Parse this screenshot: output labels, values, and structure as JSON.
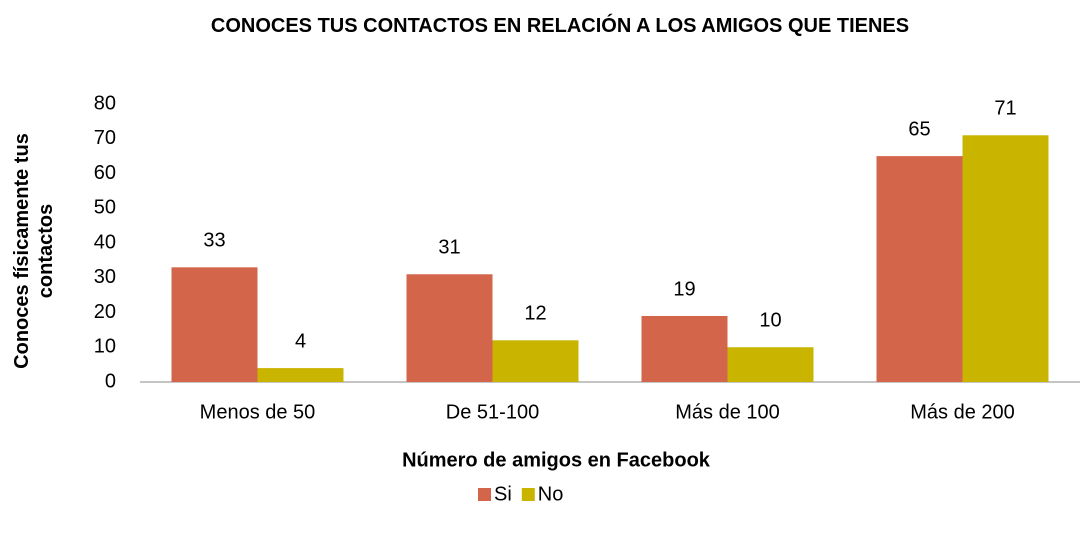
{
  "chart_data": {
    "type": "bar",
    "title": "CONOCES TUS CONTACTOS EN RELACIÓN A LOS AMIGOS QUE TIENES",
    "x_label": "Número de amigos en Facebook",
    "y_label": "Conoces físicamente tus contactos",
    "categories": [
      "Menos de 50",
      "De 51-100",
      "Más de 100",
      "Más de 200"
    ],
    "series": [
      {
        "name": "Si",
        "color": "#d2654a",
        "values": [
          33,
          31,
          19,
          65
        ]
      },
      {
        "name": "No",
        "color": "#c9b400",
        "values": [
          4,
          12,
          10,
          71
        ]
      }
    ],
    "ylim": [
      0,
      80
    ],
    "yticks": [
      0,
      10,
      20,
      30,
      40,
      50,
      60,
      70,
      80
    ],
    "grid": false,
    "legend": "bottom"
  }
}
